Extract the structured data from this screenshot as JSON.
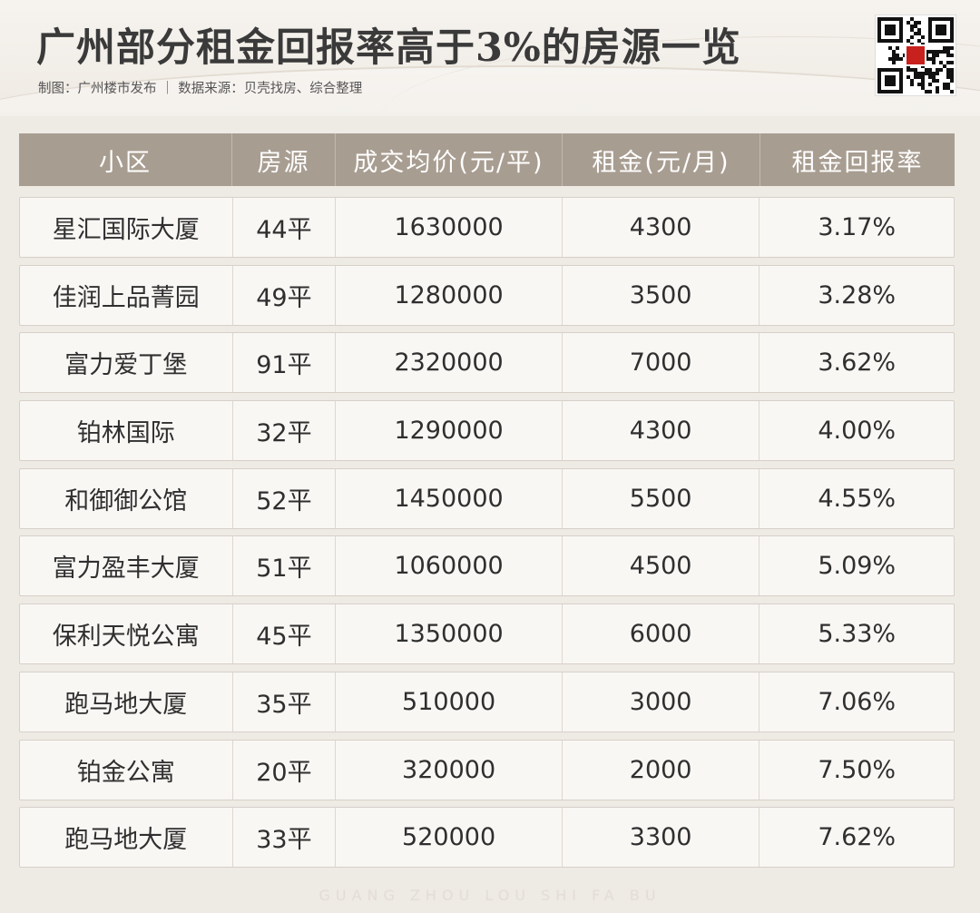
{
  "header": {
    "title": "广州部分租金回报率高于3%的房源一览",
    "subtitle": "制图：广州楼市发布 ｜ 数据来源：贝壳找房、综合整理"
  },
  "qr": {
    "icon": "qr-code-icon",
    "accent": "#c8201c"
  },
  "table": {
    "columns": [
      "小区",
      "房源",
      "成交均价(元/平)",
      "租金(元/月)",
      "租金回报率"
    ],
    "rows": [
      {
        "name": "星汇国际大厦",
        "size": "44平",
        "price": "1630000",
        "rent": "4300",
        "yield": "3.17%"
      },
      {
        "name": "佳润上品菁园",
        "size": "49平",
        "price": "1280000",
        "rent": "3500",
        "yield": "3.28%"
      },
      {
        "name": "富力爱丁堡",
        "size": "91平",
        "price": "2320000",
        "rent": "7000",
        "yield": "3.62%"
      },
      {
        "name": "铂林国际",
        "size": "32平",
        "price": "1290000",
        "rent": "4300",
        "yield": "4.00%"
      },
      {
        "name": "和御御公馆",
        "size": "52平",
        "price": "1450000",
        "rent": "5500",
        "yield": "4.55%"
      },
      {
        "name": "富力盈丰大厦",
        "size": "51平",
        "price": "1060000",
        "rent": "4500",
        "yield": "5.09%"
      },
      {
        "name": "保利天悦公寓",
        "size": "45平",
        "price": "1350000",
        "rent": "6000",
        "yield": "5.33%"
      },
      {
        "name": "跑马地大厦",
        "size": "35平",
        "price": "510000",
        "rent": "3000",
        "yield": "7.06%"
      },
      {
        "name": "铂金公寓",
        "size": "20平",
        "price": "320000",
        "rent": "2000",
        "yield": "7.50%"
      },
      {
        "name": "跑马地大厦",
        "size": "33平",
        "price": "520000",
        "rent": "3300",
        "yield": "7.62%"
      }
    ]
  },
  "footer": {
    "text": "GUANG ZHOU LOU SHI FA BU"
  }
}
